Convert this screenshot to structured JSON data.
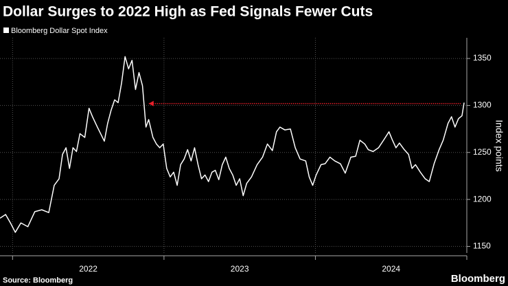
{
  "chart_data": {
    "type": "line",
    "title": "Dollar Surges to 2022 High as Fed Signals Fewer Cuts",
    "y_axis_label": "Index points",
    "source": "Source: Bloomberg",
    "brand": "Bloomberg",
    "x": [
      2021.917,
      2021.954,
      2021.986,
      2022.018,
      2022.055,
      2022.101,
      2022.147,
      2022.193,
      2022.239,
      2022.275,
      2022.307,
      2022.33,
      2022.353,
      2022.376,
      2022.399,
      2022.422,
      2022.445,
      2022.477,
      2022.505,
      2022.528,
      2022.56,
      2022.606,
      2022.628,
      2022.651,
      2022.674,
      2022.697,
      2022.72,
      2022.743,
      2022.766,
      2022.789,
      2022.812,
      2022.835,
      2022.858,
      2022.881,
      2022.899,
      2022.927,
      2022.95,
      2022.972,
      2022.995,
      2023.018,
      2023.041,
      2023.064,
      2023.087,
      2023.11,
      2023.133,
      2023.156,
      2023.179,
      2023.202,
      2023.225,
      2023.248,
      2023.271,
      2023.294,
      2023.317,
      2023.339,
      2023.362,
      2023.385,
      2023.408,
      2023.431,
      2023.454,
      2023.477,
      2023.5,
      2023.523,
      2023.546,
      2023.578,
      2023.615,
      2023.651,
      2023.683,
      2023.716,
      2023.743,
      2023.766,
      2023.798,
      2023.835,
      2023.867,
      2023.899,
      2023.936,
      2023.959,
      2023.982,
      2024.005,
      2024.037,
      2024.064,
      2024.096,
      2024.128,
      2024.165,
      2024.197,
      2024.234,
      2024.266,
      2024.294,
      2024.326,
      2024.349,
      2024.381,
      2024.417,
      2024.45,
      2024.486,
      2024.509,
      2024.532,
      2024.555,
      2024.587,
      2024.615,
      2024.638,
      2024.661,
      2024.693,
      2024.725,
      2024.752,
      2024.784,
      2024.817,
      2024.844,
      2024.876,
      2024.899,
      2024.922,
      2024.945,
      2024.968,
      2024.982
    ],
    "series": [
      {
        "name": "Bloomberg Dollar Spot Index",
        "color": "#ffffff",
        "values": [
          1180,
          1184,
          1175,
          1165,
          1175,
          1171,
          1187,
          1189,
          1186,
          1215,
          1222,
          1248,
          1255,
          1233,
          1255,
          1251,
          1270,
          1266,
          1297,
          1288,
          1277,
          1262,
          1281,
          1295,
          1306,
          1303,
          1324,
          1352,
          1339,
          1348,
          1317,
          1335,
          1321,
          1277,
          1285,
          1266,
          1259,
          1255,
          1259,
          1233,
          1224,
          1229,
          1215,
          1237,
          1243,
          1253,
          1241,
          1255,
          1237,
          1222,
          1226,
          1219,
          1229,
          1231,
          1221,
          1237,
          1245,
          1233,
          1226,
          1215,
          1222,
          1204,
          1217,
          1224,
          1237,
          1245,
          1259,
          1252,
          1272,
          1277,
          1274,
          1275,
          1255,
          1243,
          1241,
          1224,
          1215,
          1226,
          1237,
          1238,
          1245,
          1241,
          1238,
          1228,
          1245,
          1246,
          1263,
          1259,
          1253,
          1251,
          1255,
          1263,
          1272,
          1263,
          1255,
          1260,
          1253,
          1248,
          1233,
          1237,
          1229,
          1222,
          1219,
          1238,
          1253,
          1263,
          1281,
          1288,
          1277,
          1286,
          1289,
          1303
        ]
      }
    ],
    "xlim": [
      2021.917,
      2025.0
    ],
    "xticks": [
      {
        "value": 2022.5,
        "label": "2022"
      },
      {
        "value": 2023.5,
        "label": "2023"
      },
      {
        "value": 2024.5,
        "label": "2024"
      }
    ],
    "xtick_marks": [
      2022,
      2023,
      2024,
      2025
    ],
    "ylim": [
      1143,
      1372
    ],
    "yticks": [
      1150,
      1200,
      1250,
      1300,
      1350
    ],
    "grid": true,
    "reference_arrow": {
      "x": [
        2022.9,
        2024.96
      ],
      "y": 1302,
      "color": "#e8202a"
    }
  }
}
